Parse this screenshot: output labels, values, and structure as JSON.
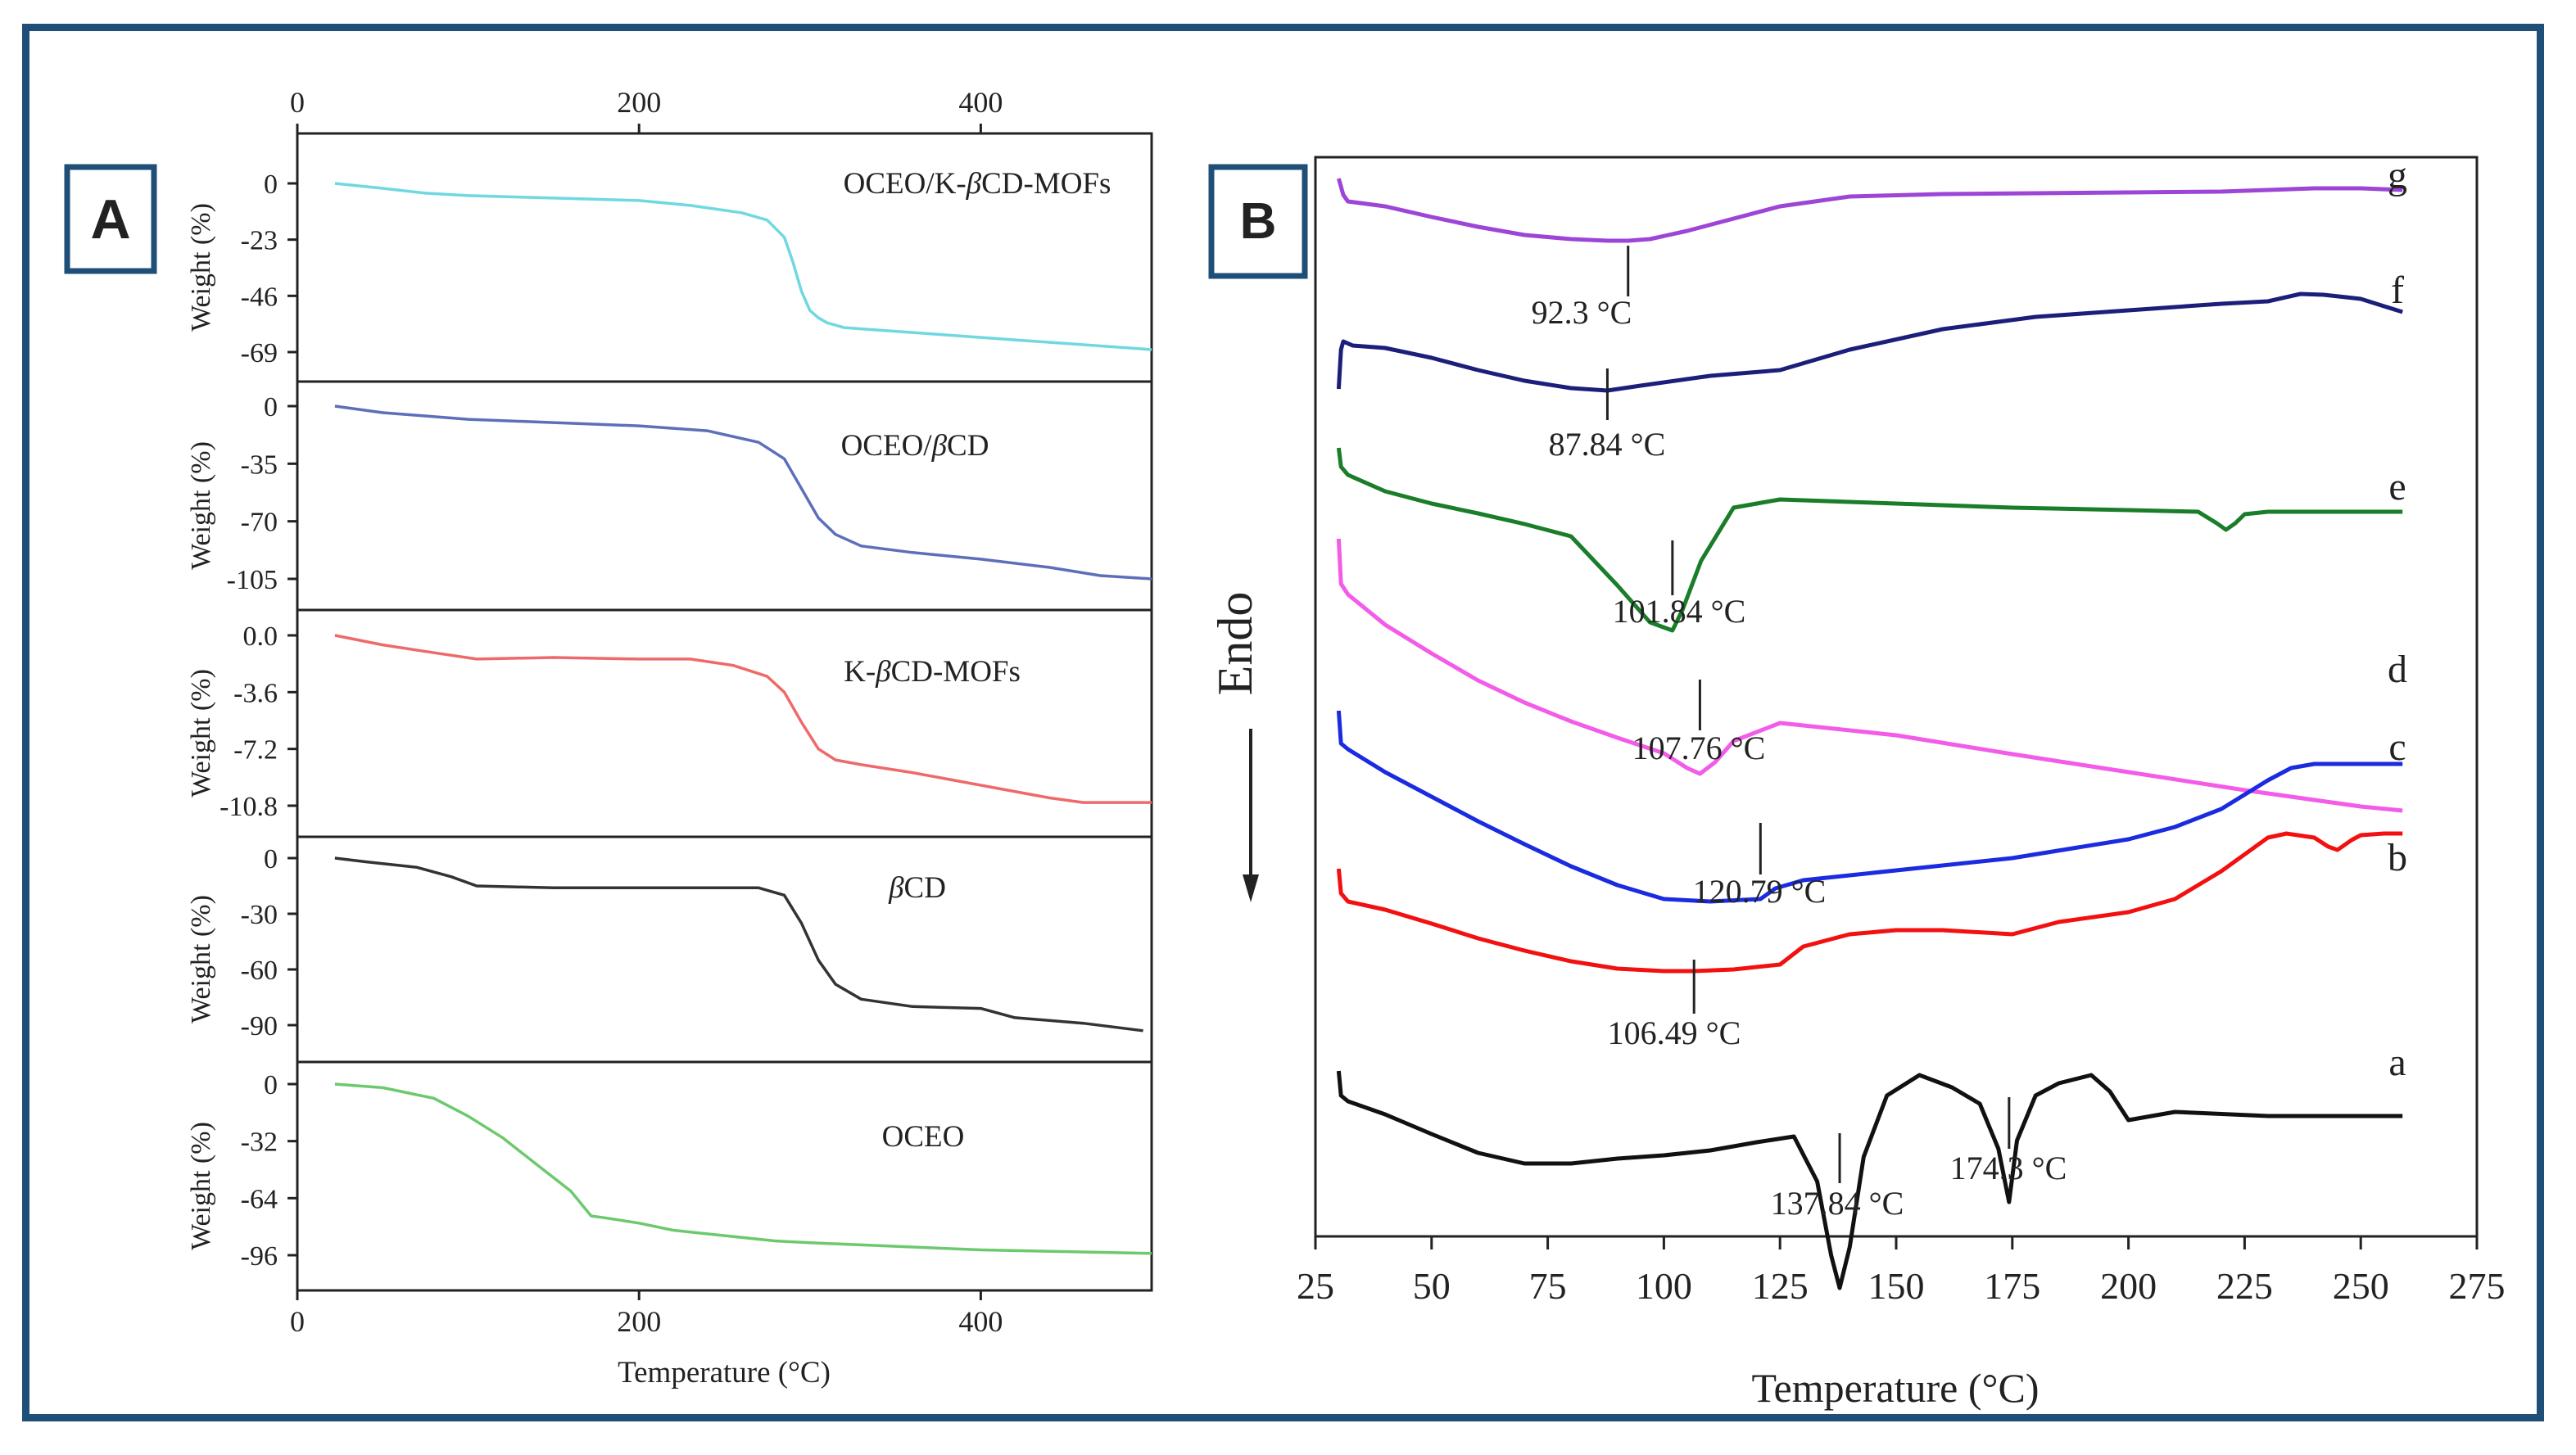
{
  "chart_data": [
    {
      "type": "line",
      "panel_label": "A",
      "xlabel": "Temperature (°C)",
      "x_ticks": [
        0,
        200,
        400
      ],
      "xlim": [
        0,
        500
      ],
      "series": [
        {
          "name": "OCEO/K-βCD-MOFs",
          "ylabel": "Weight (%)",
          "yticks": [
            "0",
            "-23",
            "-46",
            "-69"
          ],
          "ylim": [
            -82,
            8
          ],
          "color": "#6fd8e0",
          "x": [
            22,
            50,
            75,
            100,
            150,
            200,
            230,
            260,
            275,
            285,
            290,
            295,
            300,
            305,
            310,
            320,
            340,
            380,
            420,
            460,
            500
          ],
          "y": [
            0,
            -2,
            -4,
            -5,
            -6,
            -7,
            -9,
            -12,
            -15,
            -22,
            -32,
            -44,
            -52,
            -55,
            -57,
            -59,
            -60,
            -62,
            -64,
            -66,
            -68
          ]
        },
        {
          "name": "OCEO/βCD",
          "ylabel": "Weight (%)",
          "yticks": [
            "0",
            "-35",
            "-70",
            "-105"
          ],
          "ylim": [
            -120,
            10
          ],
          "color": "#5c6fb8",
          "x": [
            22,
            50,
            100,
            150,
            200,
            240,
            270,
            285,
            295,
            305,
            315,
            330,
            360,
            400,
            440,
            470,
            500
          ],
          "y": [
            0,
            -4,
            -8,
            -10,
            -12,
            -15,
            -22,
            -32,
            -50,
            -68,
            -78,
            -85,
            -89,
            -93,
            -98,
            -103,
            -105
          ]
        },
        {
          "name": "K-βCD-MOFs",
          "ylabel": "Weight (%)",
          "yticks": [
            "0.0",
            "-3.6",
            "-7.2",
            "-10.8"
          ],
          "ylim": [
            -12.3,
            1
          ],
          "color": "#ee6a6a",
          "x": [
            22,
            50,
            80,
            105,
            150,
            200,
            230,
            255,
            275,
            285,
            295,
            305,
            315,
            330,
            360,
            400,
            440,
            460,
            500
          ],
          "y": [
            0,
            -0.6,
            -1.1,
            -1.5,
            -1.4,
            -1.5,
            -1.5,
            -1.9,
            -2.6,
            -3.6,
            -5.5,
            -7.2,
            -7.9,
            -8.2,
            -8.7,
            -9.5,
            -10.3,
            -10.6,
            -10.6
          ]
        },
        {
          "name": "βCD",
          "ylabel": "Weight (%)",
          "yticks": [
            "0",
            "-30",
            "-60",
            "-90"
          ],
          "ylim": [
            -105,
            8
          ],
          "color": "#333333",
          "x": [
            22,
            40,
            70,
            90,
            105,
            150,
            200,
            240,
            270,
            285,
            295,
            305,
            315,
            330,
            360,
            400,
            420,
            460,
            495
          ],
          "y": [
            0,
            -2,
            -5,
            -10,
            -15,
            -16,
            -16,
            -16,
            -16,
            -20,
            -35,
            -55,
            -68,
            -76,
            -80,
            -81,
            -86,
            -89,
            -93
          ]
        },
        {
          "name": "OCEO",
          "ylabel": "Weight (%)",
          "yticks": [
            "0",
            "-32",
            "-64",
            "-96"
          ],
          "ylim": [
            -110,
            8
          ],
          "color": "#6dc96d",
          "x": [
            22,
            50,
            80,
            100,
            120,
            140,
            160,
            172,
            180,
            200,
            220,
            250,
            280,
            300,
            350,
            400,
            450,
            500
          ],
          "y": [
            0,
            -2,
            -8,
            -18,
            -30,
            -45,
            -60,
            -74,
            -75,
            -78,
            -82,
            -85,
            -88,
            -89,
            -91,
            -93,
            -94,
            -95
          ]
        }
      ]
    },
    {
      "type": "line",
      "panel_label": "B",
      "xlabel": "Temperature (°C)",
      "ylabel": "Endo",
      "x_ticks": [
        25,
        50,
        75,
        100,
        125,
        150,
        175,
        200,
        225,
        250,
        275
      ],
      "xlim": [
        25,
        275
      ],
      "series": [
        {
          "name": "g",
          "color": "#9d45d6",
          "peak_label": "92.3 °C",
          "peak_x": 92.3,
          "x": [
            30,
            31,
            32,
            40,
            50,
            60,
            70,
            80,
            88,
            92.3,
            97,
            105,
            115,
            125,
            140,
            160,
            180,
            200,
            220,
            230,
            240,
            250,
            259
          ],
          "y": [
            -0.14,
            0.06,
            0.14,
            0.2,
            0.33,
            0.45,
            0.55,
            0.6,
            0.62,
            0.62,
            0.6,
            0.5,
            0.35,
            0.2,
            0.08,
            0.05,
            0.04,
            0.03,
            0.02,
            0,
            -0.02,
            -0.02,
            0
          ]
        },
        {
          "name": "f",
          "color": "#1b1f7a",
          "peak_label": "87.84 °C",
          "peak_x": 87.84,
          "x": [
            30,
            30.5,
            31,
            33,
            40,
            50,
            60,
            70,
            80,
            87.84,
            95,
            110,
            125,
            140,
            160,
            180,
            200,
            220,
            230,
            237,
            242,
            250,
            255,
            259
          ],
          "y": [
            0.58,
            0.1,
            0,
            0.05,
            0.08,
            0.2,
            0.35,
            0.48,
            0.57,
            0.6,
            0.54,
            0.42,
            0.35,
            0.1,
            -0.15,
            -0.3,
            -0.38,
            -0.46,
            -0.49,
            -0.58,
            -0.57,
            -0.52,
            -0.43,
            -0.36
          ]
        },
        {
          "name": "e",
          "color": "#1a7d2a",
          "peak_label": "101.84 °C",
          "peak_x": 101.84,
          "x": [
            30,
            30.5,
            32,
            40,
            50,
            60,
            70,
            80,
            90,
            97,
            101.84,
            104,
            108,
            115,
            125,
            150,
            175,
            200,
            215,
            219,
            221,
            223,
            225,
            230,
            259
          ],
          "y": [
            -0.18,
            0.05,
            0.15,
            0.35,
            0.5,
            0.62,
            0.75,
            0.9,
            1.5,
            1.95,
            2.05,
            1.8,
            1.2,
            0.55,
            0.45,
            0.5,
            0.55,
            0.58,
            0.6,
            0.74,
            0.82,
            0.74,
            0.63,
            0.6,
            0.6
          ]
        },
        {
          "name": "d",
          "color": "#f25ce8",
          "peak_label": "107.76 °C",
          "peak_x": 107.76,
          "x": [
            30,
            30.5,
            32,
            40,
            50,
            60,
            70,
            80,
            90,
            100,
            105,
            107.76,
            111,
            115,
            125,
            150,
            175,
            200,
            225,
            250,
            259
          ],
          "y": [
            -0.55,
            0,
            0.13,
            0.5,
            0.85,
            1.18,
            1.45,
            1.68,
            1.88,
            2.07,
            2.25,
            2.32,
            2.18,
            1.92,
            1.7,
            1.85,
            2.08,
            2.3,
            2.52,
            2.72,
            2.77
          ]
        },
        {
          "name": "c",
          "color": "#1a2be0",
          "peak_label": "120.79 °C",
          "peak_x": 120.79,
          "x": [
            30,
            30.5,
            32,
            40,
            50,
            60,
            70,
            80,
            90,
            100,
            110,
            117,
            120.79,
            124,
            130,
            150,
            175,
            200,
            210,
            220,
            230,
            235,
            240,
            250,
            259
          ],
          "y": [
            -0.35,
            0.05,
            0.12,
            0.4,
            0.7,
            1.0,
            1.28,
            1.55,
            1.78,
            1.95,
            1.98,
            1.96,
            1.95,
            1.82,
            1.72,
            1.6,
            1.45,
            1.22,
            1.07,
            0.85,
            0.5,
            0.35,
            0.3,
            0.3,
            0.3
          ]
        },
        {
          "name": "b",
          "color": "#f21010",
          "peak_label": "106.49 °C",
          "peak_x": 106.49,
          "x": [
            30,
            30.5,
            32,
            40,
            50,
            60,
            70,
            80,
            90,
            100,
            106.49,
            115,
            125,
            130,
            140,
            150,
            160,
            175,
            185,
            200,
            210,
            220,
            230,
            234,
            240,
            243,
            245,
            248,
            250,
            255,
            259
          ],
          "y": [
            -0.25,
            0.05,
            0.15,
            0.25,
            0.42,
            0.6,
            0.75,
            0.88,
            0.97,
            1.0,
            1.0,
            0.98,
            0.92,
            0.7,
            0.55,
            0.5,
            0.5,
            0.55,
            0.4,
            0.28,
            0.12,
            -0.22,
            -0.63,
            -0.68,
            -0.63,
            -0.52,
            -0.48,
            -0.6,
            -0.66,
            -0.68,
            -0.68
          ]
        },
        {
          "name": "a",
          "color": "#111111",
          "peak_labels": [
            "137.84 °C",
            "174.3 °C"
          ],
          "peak_x": [
            137.84,
            174.3
          ],
          "x": [
            30,
            30.5,
            32,
            40,
            50,
            60,
            70,
            80,
            90,
            100,
            110,
            120,
            128,
            133,
            136,
            137.84,
            140,
            143,
            148,
            155,
            162,
            168,
            172,
            174.3,
            176,
            180,
            185,
            192,
            196,
            200,
            210,
            230,
            259
          ],
          "y": [
            -0.05,
            0.25,
            0.32,
            0.48,
            0.72,
            0.95,
            1.08,
            1.08,
            1.02,
            0.98,
            0.92,
            0.82,
            0.75,
            1.3,
            2.2,
            2.6,
            2.1,
            1.0,
            0.25,
            0.0,
            0.15,
            0.35,
            0.9,
            1.55,
            0.8,
            0.25,
            0.1,
            0.0,
            0.2,
            0.55,
            0.45,
            0.5,
            0.5
          ]
        }
      ]
    }
  ]
}
